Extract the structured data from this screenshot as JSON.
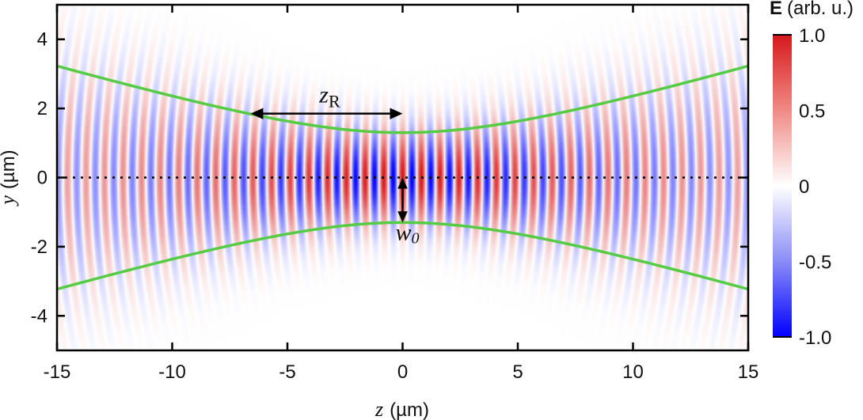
{
  "chart_data": {
    "type": "heatmap",
    "title": "",
    "xlabel_var": "z",
    "xlabel_unit": "(µm)",
    "ylabel_var": "y",
    "ylabel_unit": "(µm)",
    "xlim": [
      -15,
      15
    ],
    "ylim": [
      -5,
      5
    ],
    "xticks": [
      -15,
      -10,
      -5,
      0,
      5,
      10,
      15
    ],
    "yticks": [
      -4,
      -2,
      0,
      2,
      4
    ],
    "colorbar": {
      "label_var": "E",
      "label_unit": "(arb. u.)",
      "range": [
        -1.0,
        1.0
      ],
      "ticks": [
        "1.0",
        "0.5",
        "0",
        "-0.5",
        "-1.0"
      ],
      "colors": {
        "max": "#d7191c",
        "mid": "#ffffff",
        "min": "#0000ff"
      }
    },
    "field": {
      "waist_w0": 1.3,
      "rayleigh_zR": 6.6,
      "wavelength": 0.8
    },
    "beam_envelope": {
      "color": "#55cc44",
      "formula": "w(z) = w0 * sqrt(1 + (z/zR)^2)"
    },
    "annotations": [
      {
        "var": "z",
        "sub": "R",
        "arrow_from": [
          -6.6,
          1.85
        ],
        "arrow_to": [
          0,
          1.85
        ]
      },
      {
        "var": "w",
        "sub": "0",
        "arrow_from": [
          0,
          0
        ],
        "arrow_to": [
          0,
          -1.3
        ]
      }
    ],
    "center_line": {
      "y": 0,
      "style": "dotted"
    }
  }
}
